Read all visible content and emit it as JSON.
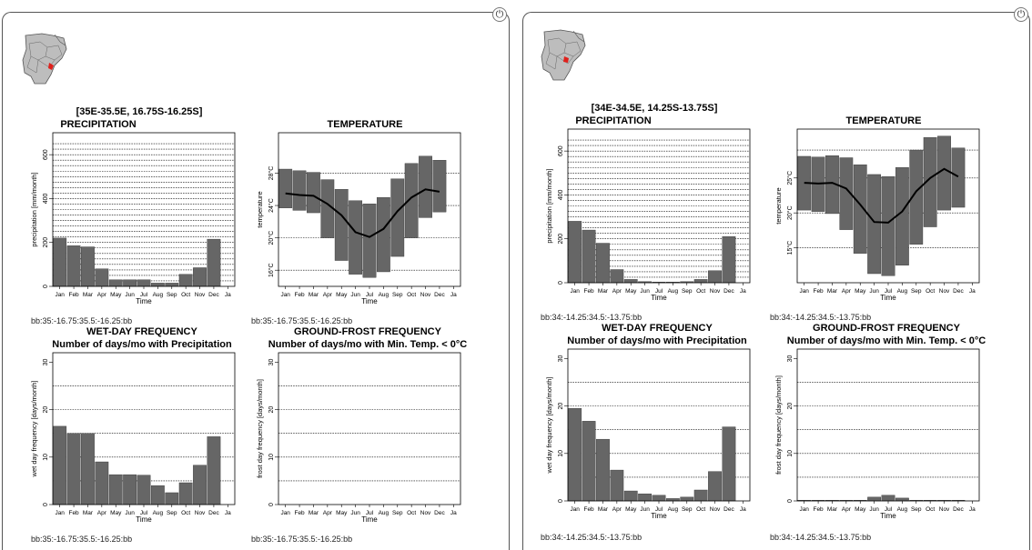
{
  "icons": {
    "power": "power-icon",
    "map": "region-map-thumbnail"
  },
  "colors": {
    "bar": "#666666",
    "frame": "#000000",
    "grid": "#000000",
    "marker": "#e0201b"
  },
  "months": [
    "Jan",
    "Feb",
    "Mar",
    "Apr",
    "May",
    "Jun",
    "Jul",
    "Aug",
    "Sep",
    "Oct",
    "Nov",
    "Dec",
    "Ja"
  ],
  "locations": [
    {
      "header": "[35E-35.5E, 16.75S-16.25S]",
      "bbox_top": "bb:35:-16.75:35.5:-16.25:bb",
      "bbox_bottom": "bb:35:-16.75:35.5:-16.25:bb",
      "charts": {
        "precip": {
          "type": "bar",
          "title": "PRECIPITATION",
          "subtitle": "",
          "xlabel": "Time",
          "ylabel": "precipitation [mm/month]",
          "ylim": [
            0,
            700
          ],
          "yticks": [
            0,
            200,
            400,
            600
          ],
          "gridlines": [
            25,
            50,
            75,
            100,
            125,
            150,
            175,
            200,
            225,
            250,
            275,
            300,
            325,
            350,
            375,
            400,
            425,
            450,
            475,
            500,
            525,
            550,
            575,
            600,
            625,
            650
          ],
          "values": [
            220,
            185,
            180,
            80,
            30,
            30,
            30,
            15,
            15,
            55,
            85,
            215
          ]
        },
        "temp": {
          "type": "bar-line",
          "title": "TEMPERATURE",
          "subtitle": "",
          "xlabel": "Time",
          "ylabel": "temperature",
          "ylim": [
            14,
            33
          ],
          "yticks": [
            16,
            20,
            24,
            28
          ],
          "yticklabels": [
            "16°C",
            "20°C",
            "24°C",
            "28°C"
          ],
          "gridlines": [
            16,
            20,
            24,
            28
          ],
          "low": [
            23.7,
            23.4,
            23.1,
            20,
            17.2,
            15.5,
            15.1,
            15.8,
            17.7,
            20,
            22.5,
            23.2
          ],
          "high": [
            28.5,
            28.3,
            28.1,
            27.2,
            26,
            24.6,
            24.2,
            25,
            27.3,
            29.2,
            30.1,
            29.6
          ],
          "mean": [
            25.5,
            25.3,
            25.2,
            24.2,
            22.8,
            20.7,
            20.1,
            21.1,
            23.3,
            25,
            26,
            25.7
          ]
        },
        "wet": {
          "type": "bar",
          "title": "WET-DAY FREQUENCY",
          "subtitle": "Number of days/mo with Precipitation",
          "xlabel": "Time",
          "ylabel": "wet day frequency [days/month]",
          "ylim": [
            0,
            32
          ],
          "yticks": [
            0,
            10,
            20,
            30
          ],
          "gridlines": [
            5,
            10,
            15,
            20,
            25
          ],
          "values": [
            16.5,
            15,
            15,
            9,
            6.3,
            6.3,
            6.2,
            4,
            2.5,
            4.6,
            8.3,
            14.3
          ]
        },
        "frost": {
          "type": "bar",
          "title": "GROUND-FROST FREQUENCY",
          "subtitle": "Number of days/mo with Min. Temp. < 0°C",
          "xlabel": "Time",
          "ylabel": "frost day frequency [days/month]",
          "ylim": [
            0,
            32
          ],
          "yticks": [
            0,
            10,
            20,
            30
          ],
          "gridlines": [
            5,
            10,
            15,
            20,
            25
          ],
          "values": [
            0,
            0,
            0,
            0,
            0,
            0,
            0,
            0,
            0,
            0,
            0,
            0
          ]
        }
      }
    },
    {
      "header": "[34E-34.5E, 14.25S-13.75S]",
      "bbox_top": "bb:34:-14.25:34.5:-13.75:bb",
      "bbox_bottom": "bb:34:-14.25:34.5:-13.75:bb",
      "charts": {
        "precip": {
          "type": "bar",
          "title": "PRECIPITATION",
          "subtitle": "",
          "xlabel": "Time",
          "ylabel": "precipitation [mm/month]",
          "ylim": [
            0,
            700
          ],
          "yticks": [
            0,
            200,
            400,
            600
          ],
          "gridlines": [
            25,
            50,
            75,
            100,
            125,
            150,
            175,
            200,
            225,
            250,
            275,
            300,
            325,
            350,
            375,
            400,
            425,
            450,
            475,
            500,
            525,
            550,
            575,
            600,
            625,
            650
          ],
          "values": [
            280,
            240,
            180,
            60,
            15,
            5,
            2,
            2,
            5,
            15,
            55,
            210
          ]
        },
        "temp": {
          "type": "bar-line",
          "title": "TEMPERATURE",
          "subtitle": "",
          "xlabel": "Time",
          "ylabel": "temperature",
          "ylim": [
            10,
            32
          ],
          "yticks": [
            15,
            20,
            25
          ],
          "yticklabels": [
            "15°C",
            "20°C",
            "25°C"
          ],
          "gridlines": [
            15,
            20,
            25,
            29
          ],
          "low": [
            20.4,
            20.2,
            19.9,
            17.6,
            14.2,
            11.3,
            11,
            12.5,
            15.5,
            18,
            20.4,
            20.8
          ],
          "high": [
            28.1,
            28,
            28.2,
            27.9,
            26.9,
            25.5,
            25.2,
            26.5,
            29,
            30.8,
            31,
            29.3
          ],
          "mean": [
            24.3,
            24.2,
            24.3,
            23.5,
            21.2,
            18.7,
            18.6,
            20.2,
            23.1,
            25,
            26.3,
            25.2
          ]
        },
        "wet": {
          "type": "bar",
          "title": "WET-DAY FREQUENCY",
          "subtitle": "Number of days/mo with Precipitation",
          "xlabel": "Time",
          "ylabel": "wet day frequency [days/month]",
          "ylim": [
            0,
            32
          ],
          "yticks": [
            0,
            10,
            20,
            30
          ],
          "gridlines": [
            5,
            10,
            15,
            20,
            25
          ],
          "values": [
            19.5,
            16.8,
            13,
            6.5,
            2.1,
            1.5,
            1.2,
            0.5,
            0.8,
            2.3,
            6.2,
            15.6
          ]
        },
        "frost": {
          "type": "bar",
          "title": "GROUND-FROST FREQUENCY",
          "subtitle": "Number of days/mo with Min. Temp. < 0°C",
          "xlabel": "Time",
          "ylabel": "frost day frequency [days/month]",
          "ylim": [
            0,
            32
          ],
          "yticks": [
            0,
            10,
            20,
            30
          ],
          "gridlines": [
            5,
            10,
            15,
            20,
            25
          ],
          "values": [
            0.1,
            0.1,
            0.1,
            0.1,
            0.1,
            0.8,
            1.2,
            0.6,
            0.1,
            0.1,
            0.1,
            0.1
          ]
        }
      }
    }
  ]
}
